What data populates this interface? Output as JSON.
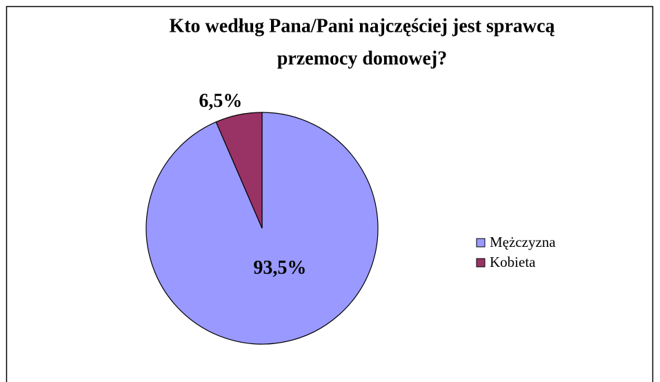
{
  "chart_data": {
    "type": "pie",
    "title": [
      "Kto według Pana/Pani  najczęściej jest sprawcą",
      "przemocy domowej?"
    ],
    "categories": [
      "Mężczyzna",
      "Kobieta"
    ],
    "values": [
      93.5,
      6.5
    ],
    "value_labels": [
      "93,5%",
      "6,5%"
    ],
    "colors": [
      "#9999ff",
      "#993366"
    ],
    "legend": "right"
  }
}
